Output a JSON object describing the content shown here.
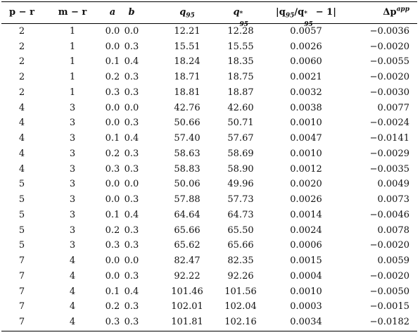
{
  "table": {
    "header": [
      [
        {
          "text": "p − r"
        }
      ],
      [
        {
          "text": "m − r"
        }
      ],
      [
        {
          "text": "a"
        }
      ],
      [
        {
          "text": "b"
        }
      ],
      [
        {
          "text": "q"
        },
        {
          "text": "95",
          "pos": "sub"
        }
      ],
      [
        {
          "text": "q"
        },
        {
          "text": "*",
          "pos": "supsub"
        },
        {
          "text": "95",
          "pos": "subsup"
        }
      ],
      [
        {
          "text": "|q"
        },
        {
          "text": "95",
          "pos": "sub"
        },
        {
          "text": "/q"
        },
        {
          "text": "*",
          "pos": "supsub"
        },
        {
          "text": "95",
          "pos": "subsup"
        },
        {
          "text": " − 1|"
        }
      ],
      [
        {
          "text": "Δp"
        },
        {
          "text": "app",
          "pos": "sup"
        }
      ]
    ],
    "rows": [
      [
        "2",
        "1",
        "0.0",
        "0.0",
        "12.21",
        "12.28",
        "0.0057",
        "−0.0036"
      ],
      [
        "2",
        "1",
        "0.0",
        "0.3",
        "15.51",
        "15.55",
        "0.0026",
        "−0.0020"
      ],
      [
        "2",
        "1",
        "0.1",
        "0.4",
        "18.24",
        "18.35",
        "0.0060",
        "−0.0055"
      ],
      [
        "2",
        "1",
        "0.2",
        "0.3",
        "18.71",
        "18.75",
        "0.0021",
        "−0.0020"
      ],
      [
        "2",
        "1",
        "0.3",
        "0.3",
        "18.81",
        "18.87",
        "0.0032",
        "−0.0030"
      ],
      [
        "4",
        "3",
        "0.0",
        "0.0",
        "42.76",
        "42.60",
        "0.0038",
        "0.0077"
      ],
      [
        "4",
        "3",
        "0.0",
        "0.3",
        "50.66",
        "50.71",
        "0.0010",
        "−0.0024"
      ],
      [
        "4",
        "3",
        "0.1",
        "0.4",
        "57.40",
        "57.67",
        "0.0047",
        "−0.0141"
      ],
      [
        "4",
        "3",
        "0.2",
        "0.3",
        "58.63",
        "58.69",
        "0.0010",
        "−0.0029"
      ],
      [
        "4",
        "3",
        "0.3",
        "0.3",
        "58.83",
        "58.90",
        "0.0012",
        "−0.0035"
      ],
      [
        "5",
        "3",
        "0.0",
        "0.0",
        "50.06",
        "49.96",
        "0.0020",
        "0.0049"
      ],
      [
        "5",
        "3",
        "0.0",
        "0.3",
        "57.88",
        "57.73",
        "0.0026",
        "0.0073"
      ],
      [
        "5",
        "3",
        "0.1",
        "0.4",
        "64.64",
        "64.73",
        "0.0014",
        "−0.0046"
      ],
      [
        "5",
        "3",
        "0.2",
        "0.3",
        "65.66",
        "65.50",
        "0.0024",
        "0.0078"
      ],
      [
        "5",
        "3",
        "0.3",
        "0.3",
        "65.62",
        "65.66",
        "0.0006",
        "−0.0020"
      ],
      [
        "7",
        "4",
        "0.0",
        "0.0",
        "82.47",
        "82.35",
        "0.0015",
        "0.0059"
      ],
      [
        "7",
        "4",
        "0.0",
        "0.3",
        "92.22",
        "92.26",
        "0.0004",
        "−0.0020"
      ],
      [
        "7",
        "4",
        "0.1",
        "0.4",
        "101.46",
        "101.56",
        "0.0010",
        "−0.0050"
      ],
      [
        "7",
        "4",
        "0.2",
        "0.3",
        "102.01",
        "102.04",
        "0.0003",
        "−0.0015"
      ],
      [
        "7",
        "4",
        "0.3",
        "0.3",
        "101.81",
        "102.16",
        "0.0034",
        "−0.0182"
      ]
    ]
  }
}
